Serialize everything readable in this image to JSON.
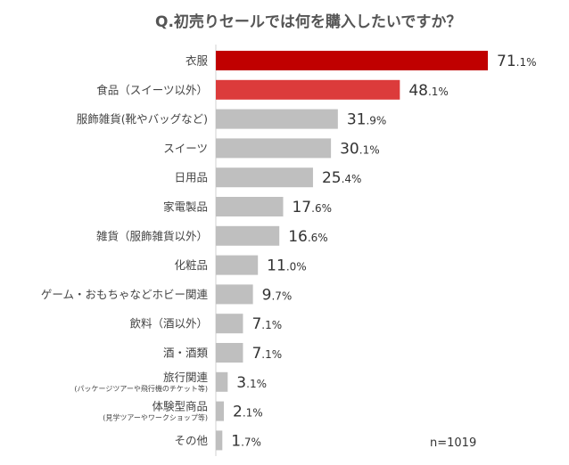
{
  "chart_data": {
    "type": "bar",
    "orientation": "horizontal",
    "title": "Q.初売りセールでは何を購入したいですか？",
    "note": "n=1019",
    "unit": "%",
    "categories": [
      {
        "label": "衣服",
        "value": 71.1,
        "highlight": "primary"
      },
      {
        "label": "食品（スイーツ以外）",
        "value": 48.1,
        "highlight": "secondary"
      },
      {
        "label": "服飾雑貨(靴やバッグなど)",
        "value": 31.9
      },
      {
        "label": "スイーツ",
        "value": 30.1
      },
      {
        "label": "日用品",
        "value": 25.4
      },
      {
        "label": "家電製品",
        "value": 17.6
      },
      {
        "label": "雑貨（服飾雑貨以外）",
        "value": 16.6
      },
      {
        "label": "化粧品",
        "value": 11.0
      },
      {
        "label": "ゲーム・おもちゃなどホビー関連",
        "value": 9.7
      },
      {
        "label": "飲料（酒以外）",
        "value": 7.1
      },
      {
        "label": "酒・酒類",
        "value": 7.1
      },
      {
        "label": "旅行関連",
        "sublabel": "(パッケージツアーや飛行機のチケット等)",
        "value": 3.1
      },
      {
        "label": "体験型商品",
        "sublabel": "(見学ツアーやワークショップ等)",
        "value": 2.1
      },
      {
        "label": "その他",
        "value": 1.7
      }
    ],
    "xlim": [
      0,
      71.1
    ]
  },
  "colors": {
    "primary": "#C00000",
    "secondary": "#DC3B3B",
    "default": "#BFBFBF",
    "primary_text": "#C00000",
    "secondary_text": "#C94040",
    "axis": "#D0D0D0"
  }
}
